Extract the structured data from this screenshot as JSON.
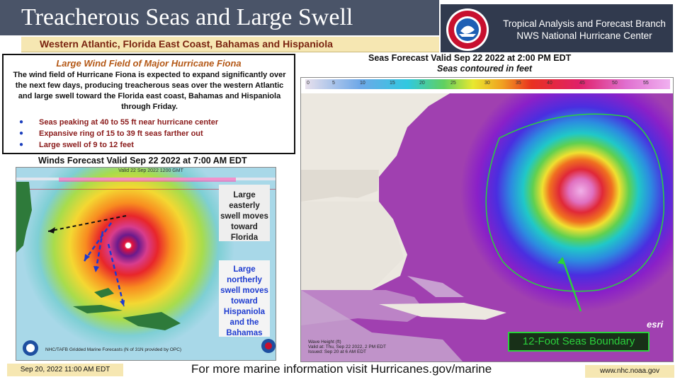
{
  "header": {
    "title": "Treacherous Seas and Large Swell",
    "subtitle": "Western Atlantic, Florida East Coast, Bahamas and Hispaniola",
    "org_line1": "Tropical Analysis and Forecast Branch",
    "org_line2": "NWS National Hurricane Center",
    "logo_icon": "nws-logo-icon"
  },
  "summary": {
    "title": "Large Wind Field of Major Hurricane Fiona",
    "paragraph": "The wind field of Hurricane Fiona is expected to expand significantly over the next few days, producing treacherous seas over the western Atlantic and large swell toward the Florida east coast, Bahamas and Hispaniola through Friday.",
    "bullets": [
      "Seas peaking at 40 to 55 ft near hurricane center",
      "Expansive ring of 15 to 39 ft seas farther out",
      "Large swell of 9 to 12 feet"
    ],
    "bullet_symbol": "●"
  },
  "winds_panel": {
    "title": "Winds Forecast Valid Sep 22 2022 at 7:00 AM EDT",
    "map_header": "Valid 22 Sep 2022 1200 GMT",
    "map_footer": "NHC/TAFB Gridded Marine Forecasts (N of 31N provided by OPC)",
    "callout_florida": "Large easterly swell moves toward Florida",
    "callout_hispaniola": "Large northerly swell moves toward Hispaniola and the Bahamas"
  },
  "seas_panel": {
    "title": "Seas Forecast Valid Sep 22 2022 at 2:00 PM EDT",
    "subtitle": "Seas contoured in feet",
    "legend_ticks": [
      "0",
      "5",
      "10",
      "15",
      "20",
      "25",
      "30",
      "35",
      "40",
      "45",
      "50",
      "55"
    ],
    "boundary_label": "12-Foot Seas Boundary",
    "esri_label": "esri",
    "footer_lines": [
      "Wave Height (ft)",
      "Valid at: Thu, Sep 22 2022,  2 PM EDT",
      "Issued: Sep 20 at 6 AM EDT"
    ]
  },
  "footer": {
    "date": "Sep 20, 2022 11:00 AM EDT",
    "message": "For more marine information visit Hurricanes.gov/marine",
    "url": "www.nhc.noaa.gov"
  },
  "colors": {
    "title_bar": "#4a5468",
    "subtitle_bar": "#f6e7b2",
    "subtitle_text": "#7a2410",
    "summary_title": "#b45816",
    "bullet_text": "#8a1a1a",
    "bullet_dot": "#1a3dbd",
    "boundary": "#2bd23c"
  }
}
